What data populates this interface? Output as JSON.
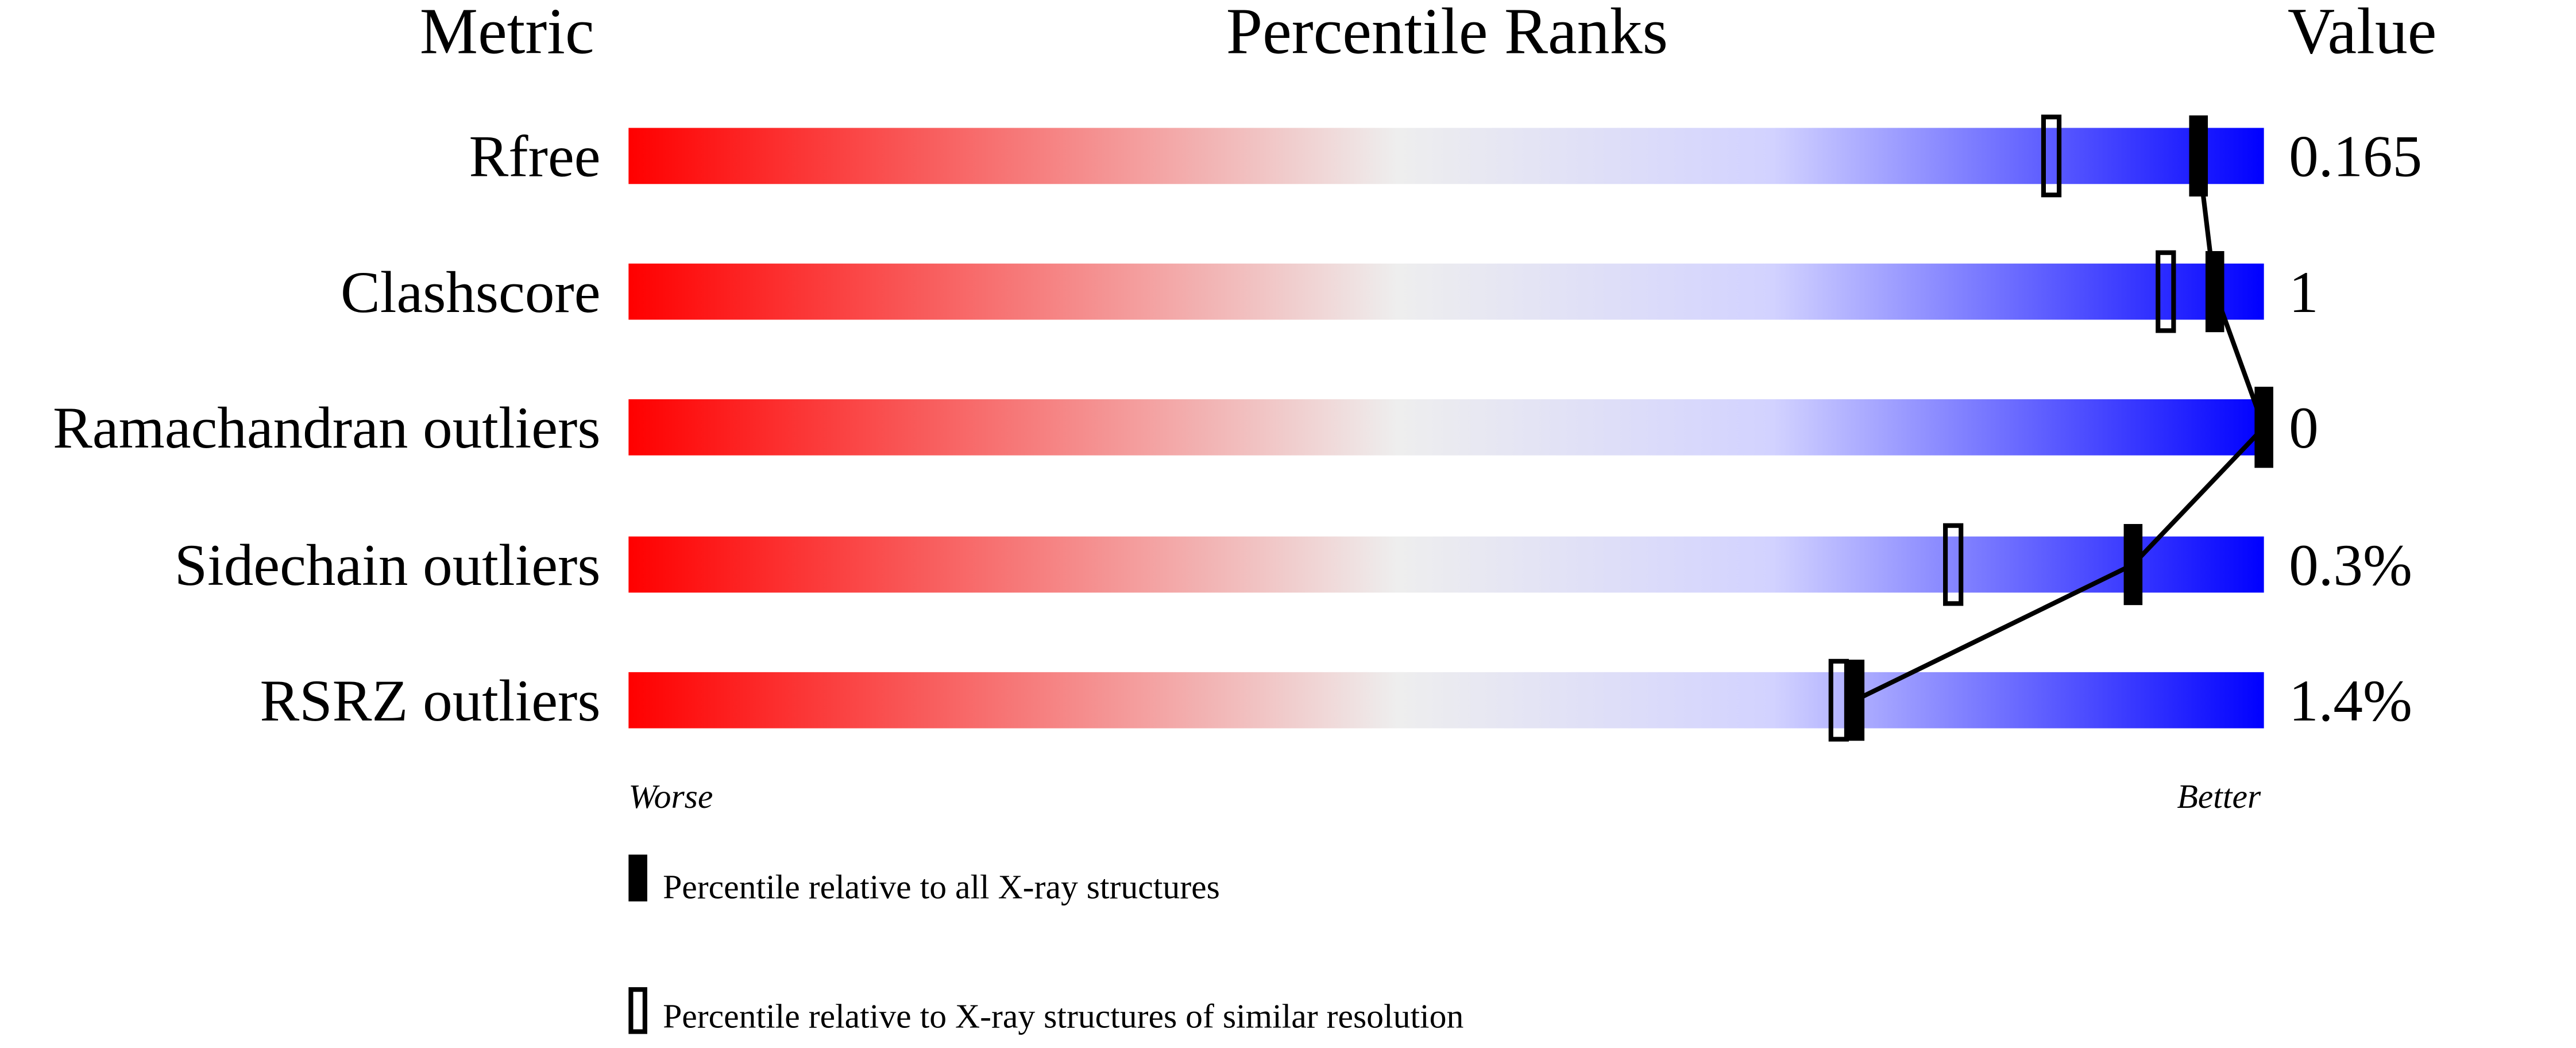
{
  "chart_data": {
    "type": "bar",
    "headers": {
      "metric": "Metric",
      "ranks": "Percentile Ranks",
      "value": "Value"
    },
    "xlim": [
      0,
      100
    ],
    "categories": [
      "Rfree",
      "Clashscore",
      "Ramachandran outliers",
      "Sidechain outliers",
      "RSRZ outliers"
    ],
    "values_text": [
      "0.165",
      "1",
      "0",
      "0.3%",
      "1.4%"
    ],
    "series": [
      {
        "name": "Percentile relative to all X-ray structures",
        "marker": "filled",
        "values": [
          96,
          97,
          100,
          92,
          75
        ]
      },
      {
        "name": "Percentile relative to X-ray structures of similar resolution",
        "marker": "open",
        "values": [
          87,
          94,
          null,
          81,
          74
        ]
      }
    ],
    "axis_ends": {
      "left": "Worse",
      "right": "Better"
    },
    "gradient_colors": [
      "#ff0000",
      "#eeeeee",
      "#0000ff"
    ]
  }
}
